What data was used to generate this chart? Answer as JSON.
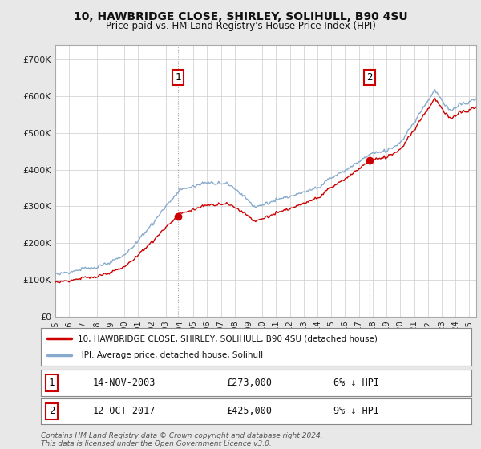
{
  "title": "10, HAWBRIDGE CLOSE, SHIRLEY, SOLIHULL, B90 4SU",
  "subtitle": "Price paid vs. HM Land Registry's House Price Index (HPI)",
  "yticks": [
    0,
    100000,
    200000,
    300000,
    400000,
    500000,
    600000,
    700000
  ],
  "ylim": [
    0,
    740000
  ],
  "xlim_min": 1995,
  "xlim_max": 2025.5,
  "sale1_yr": 2003.88,
  "sale1_price": 273000,
  "sale1_date": "14-NOV-2003",
  "sale1_label": "6% ↓ HPI",
  "sale2_yr": 2017.79,
  "sale2_price": 425000,
  "sale2_date": "12-OCT-2017",
  "sale2_label": "9% ↓ HPI",
  "legend_line1": "10, HAWBRIDGE CLOSE, SHIRLEY, SOLIHULL, B90 4SU (detached house)",
  "legend_line2": "HPI: Average price, detached house, Solihull",
  "footer1": "Contains HM Land Registry data © Crown copyright and database right 2024.",
  "footer2": "This data is licensed under the Open Government Licence v3.0.",
  "line_color_red": "#cc0000",
  "line_color_blue": "#88aacc",
  "fig_bg": "#e8e8e8",
  "plot_bg": "#ffffff",
  "grid_color": "#cccccc",
  "vline1_color": "#aaaaaa",
  "vline2_color": "#cc0000",
  "marker_color": "#cc0000"
}
